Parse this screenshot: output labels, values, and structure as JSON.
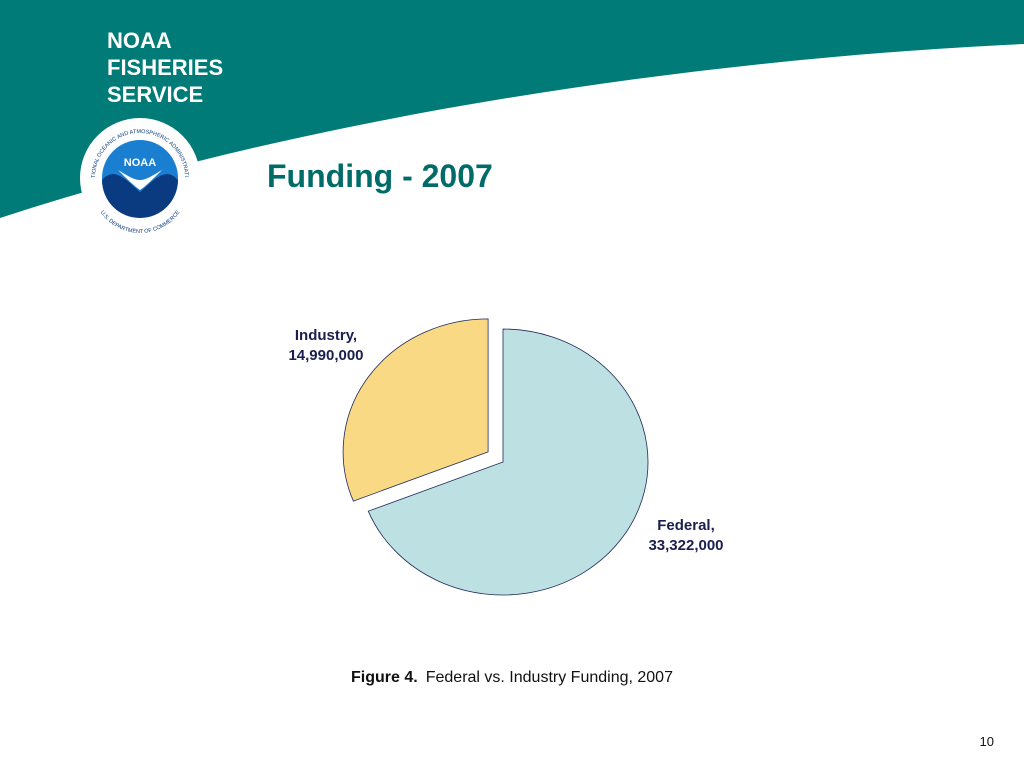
{
  "header": {
    "brand": [
      "NOAA",
      "FISHERIES",
      "SERVICE"
    ],
    "logo": {
      "center": "NOAA",
      "ring_top": "NATIONAL OCEANIC AND ATMOSPHERIC ADMINISTRATION",
      "ring_bottom": "U.S. DEPARTMENT OF COMMERCE"
    }
  },
  "chart_data": {
    "type": "pie",
    "title": "Funding - 2007",
    "categories": [
      "Federal,",
      "Industry,"
    ],
    "values": [
      33322000,
      14990000
    ],
    "value_labels": [
      "33,322,000",
      "14,990,000"
    ],
    "colors": [
      "#bde0e3",
      "#fad985"
    ],
    "exploded": [
      false,
      true
    ]
  },
  "caption": {
    "label": "Figure 4.",
    "text": "Federal vs. Industry Funding, 2007"
  },
  "page_number": "10"
}
